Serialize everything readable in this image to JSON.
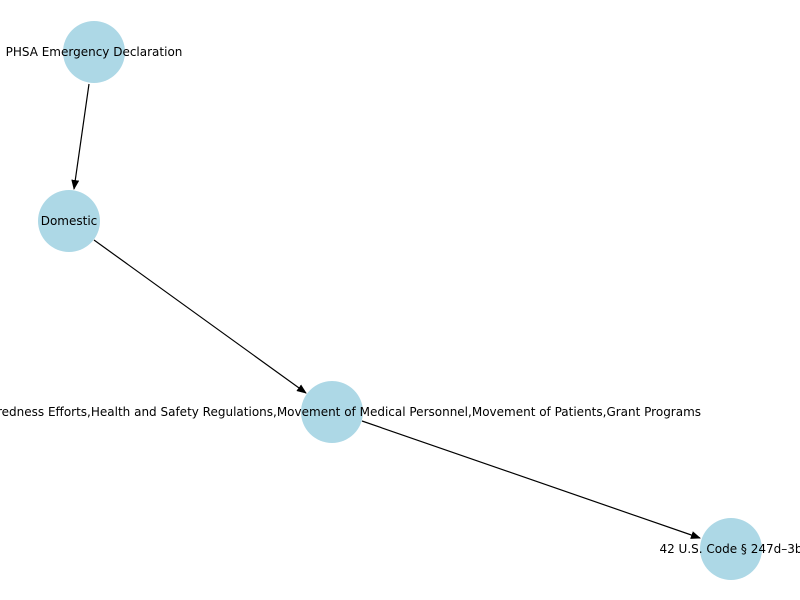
{
  "graph": {
    "node_color": "#add8e6",
    "edge_color": "#000000",
    "nodes": [
      {
        "id": "n1",
        "label": "PHSA Emergency Declaration"
      },
      {
        "id": "n2",
        "label": "Domestic"
      },
      {
        "id": "n3",
        "label": "Preparedness Efforts,Health and Safety Regulations,Movement of Medical Personnel,Movement of Patients,Grant Programs"
      },
      {
        "id": "n4",
        "label": "42 U.S. Code § 247d–3b"
      }
    ],
    "edges": [
      {
        "from": "n1",
        "to": "n2"
      },
      {
        "from": "n2",
        "to": "n3"
      },
      {
        "from": "n3",
        "to": "n4"
      }
    ]
  }
}
